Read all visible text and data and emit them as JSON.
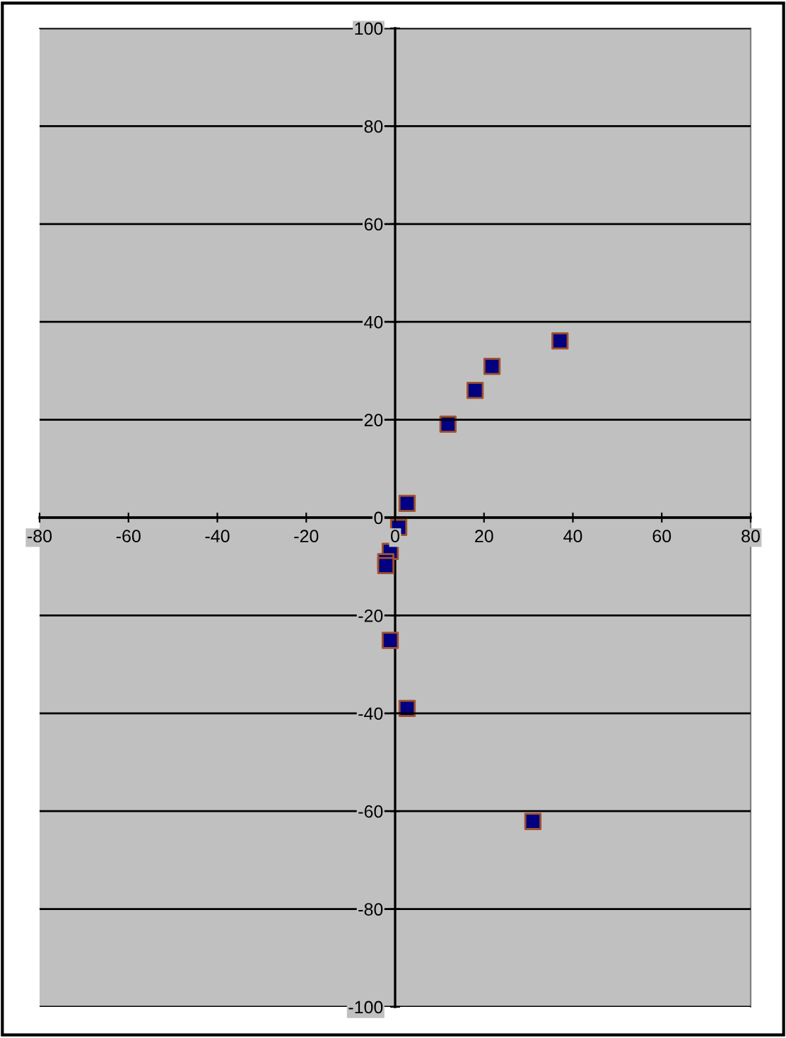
{
  "chart_data": {
    "type": "scatter",
    "x": [
      37.1,
      21.8,
      18.0,
      11.9,
      2.7,
      0.8,
      -1.1,
      -2.1,
      -2.1,
      -1.1,
      2.7,
      31.0
    ],
    "series": [
      {
        "color": "#000080",
        "values": [
          36.1,
          30.9,
          26.0,
          19.1,
          2.9,
          -2.0,
          -6.9,
          -9.0,
          -9.8,
          -25.1,
          -39.0,
          -62.1
        ]
      }
    ],
    "xlim": [
      -80,
      80
    ],
    "xticks": [
      -80,
      -60,
      -40,
      -20,
      0,
      20,
      40,
      60,
      80
    ],
    "ylim": [
      -100,
      100
    ],
    "yticks": [
      -100,
      -80,
      -60,
      -40,
      -20,
      0,
      20,
      40,
      60,
      80,
      100
    ],
    "grid": "y",
    "marker": "square"
  }
}
